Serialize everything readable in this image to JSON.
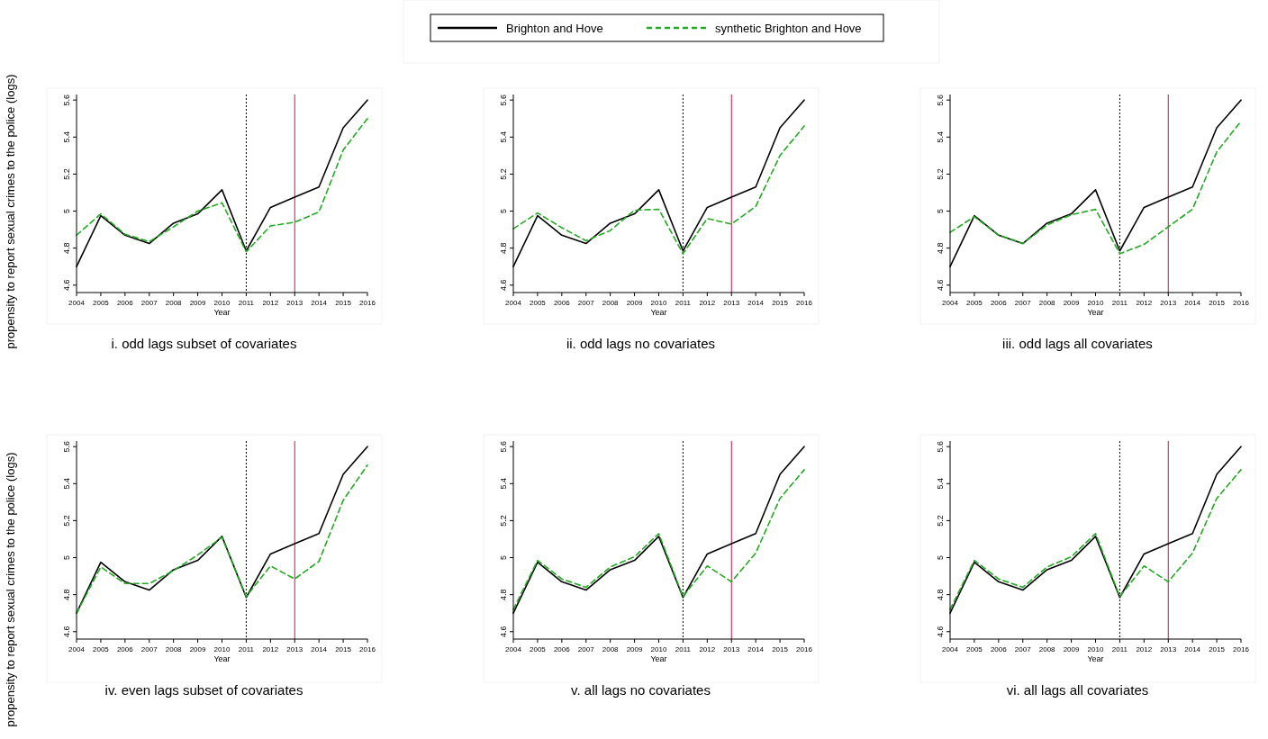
{
  "chart_data": [
    {
      "type": "line",
      "title": "i. odd lags subset of covariates",
      "xlabel": "Year",
      "ylabel": "propensity to report sexual crimes to the police (logs)",
      "legend": "top",
      "x": [
        2004,
        2005,
        2006,
        2007,
        2008,
        2009,
        2010,
        2011,
        2012,
        2013,
        2014,
        2015,
        2016
      ],
      "xlim": [
        2004,
        2016
      ],
      "xticks": [
        2004,
        2005,
        2006,
        2007,
        2008,
        2009,
        2010,
        2011,
        2012,
        2013,
        2014,
        2015,
        2016
      ],
      "ylim": [
        4.56,
        5.63
      ],
      "yticks": [
        4.6,
        4.8,
        5,
        5.2,
        5.4,
        5.6
      ],
      "ref_lines": [
        {
          "axis": "x",
          "value": 2011,
          "color": "#000000",
          "line_style": "dotted"
        },
        {
          "axis": "x",
          "value": 2013,
          "color": "#cc1144",
          "line_style": "solid"
        }
      ],
      "series": [
        {
          "name": "Brighton and Hove",
          "color": "#000000",
          "line_style": "solid",
          "values": [
            4.7,
            4.975,
            4.87,
            4.825,
            4.935,
            4.985,
            5.115,
            4.785,
            5.02,
            5.075,
            5.13,
            5.45,
            5.6
          ]
        },
        {
          "name": "synthetic Brighton and Hove",
          "color": "#22aa22",
          "line_style": "dashed",
          "values": [
            4.87,
            4.985,
            4.875,
            4.835,
            4.915,
            5.0,
            5.045,
            4.78,
            4.92,
            4.94,
            4.995,
            5.33,
            5.5
          ]
        }
      ]
    },
    {
      "type": "line",
      "title": "ii. odd lags no covariates",
      "xlabel": "Year",
      "x": [
        2004,
        2005,
        2006,
        2007,
        2008,
        2009,
        2010,
        2011,
        2012,
        2013,
        2014,
        2015,
        2016
      ],
      "xlim": [
        2004,
        2016
      ],
      "xticks": [
        2004,
        2005,
        2006,
        2007,
        2008,
        2009,
        2010,
        2011,
        2012,
        2013,
        2014,
        2015,
        2016
      ],
      "ylim": [
        4.56,
        5.63
      ],
      "yticks": [
        4.6,
        4.8,
        5,
        5.2,
        5.4,
        5.6
      ],
      "ref_lines": [
        {
          "axis": "x",
          "value": 2011,
          "color": "#000000",
          "line_style": "dotted"
        },
        {
          "axis": "x",
          "value": 2013,
          "color": "#cc1144",
          "line_style": "solid"
        }
      ],
      "series": [
        {
          "color": "#000000",
          "line_style": "solid",
          "values": [
            4.7,
            4.975,
            4.87,
            4.825,
            4.935,
            4.985,
            5.115,
            4.785,
            5.02,
            5.075,
            5.13,
            5.45,
            5.6
          ]
        },
        {
          "color": "#22aa22",
          "line_style": "dashed",
          "values": [
            4.905,
            4.99,
            4.91,
            4.84,
            4.895,
            5.005,
            5.01,
            4.77,
            4.96,
            4.93,
            5.025,
            5.3,
            5.46
          ]
        }
      ]
    },
    {
      "type": "line",
      "title": "iii. odd lags all covariates",
      "xlabel": "Year",
      "x": [
        2004,
        2005,
        2006,
        2007,
        2008,
        2009,
        2010,
        2011,
        2012,
        2013,
        2014,
        2015,
        2016
      ],
      "xlim": [
        2004,
        2016
      ],
      "xticks": [
        2004,
        2005,
        2006,
        2007,
        2008,
        2009,
        2010,
        2011,
        2012,
        2013,
        2014,
        2015,
        2016
      ],
      "ylim": [
        4.56,
        5.63
      ],
      "yticks": [
        4.6,
        4.8,
        5,
        5.2,
        5.4,
        5.6
      ],
      "ref_lines": [
        {
          "axis": "x",
          "value": 2011,
          "color": "#000000",
          "line_style": "dotted"
        },
        {
          "axis": "x",
          "value": 2013,
          "color": "#cc1144",
          "line_style": "solid"
        }
      ],
      "series": [
        {
          "color": "#000000",
          "line_style": "solid",
          "values": [
            4.7,
            4.975,
            4.87,
            4.825,
            4.935,
            4.985,
            5.115,
            4.785,
            5.02,
            5.075,
            5.13,
            5.45,
            5.6
          ]
        },
        {
          "color": "#22aa22",
          "line_style": "dashed",
          "values": [
            4.885,
            4.97,
            4.87,
            4.825,
            4.925,
            4.98,
            5.01,
            4.77,
            4.82,
            4.915,
            5.01,
            5.32,
            5.485
          ]
        }
      ]
    },
    {
      "type": "line",
      "title": "iv. even lags subset of covariates",
      "xlabel": "Year",
      "ylabel": "propensity to report sexual crimes to the police (logs)",
      "x": [
        2004,
        2005,
        2006,
        2007,
        2008,
        2009,
        2010,
        2011,
        2012,
        2013,
        2014,
        2015,
        2016
      ],
      "xlim": [
        2004,
        2016
      ],
      "xticks": [
        2004,
        2005,
        2006,
        2007,
        2008,
        2009,
        2010,
        2011,
        2012,
        2013,
        2014,
        2015,
        2016
      ],
      "ylim": [
        4.56,
        5.63
      ],
      "yticks": [
        4.6,
        4.8,
        5,
        5.2,
        5.4,
        5.6
      ],
      "ref_lines": [
        {
          "axis": "x",
          "value": 2011,
          "color": "#000000",
          "line_style": "dotted"
        },
        {
          "axis": "x",
          "value": 2013,
          "color": "#cc1144",
          "line_style": "solid"
        }
      ],
      "series": [
        {
          "color": "#000000",
          "line_style": "solid",
          "values": [
            4.7,
            4.975,
            4.87,
            4.825,
            4.935,
            4.985,
            5.115,
            4.785,
            5.02,
            5.075,
            5.13,
            5.45,
            5.6
          ]
        },
        {
          "color": "#22aa22",
          "line_style": "dashed",
          "values": [
            4.7,
            4.95,
            4.86,
            4.86,
            4.93,
            5.015,
            5.11,
            4.79,
            4.955,
            4.885,
            4.98,
            5.31,
            5.5
          ]
        }
      ]
    },
    {
      "type": "line",
      "title": "v. all lags no covariates",
      "xlabel": "Year",
      "x": [
        2004,
        2005,
        2006,
        2007,
        2008,
        2009,
        2010,
        2011,
        2012,
        2013,
        2014,
        2015,
        2016
      ],
      "xlim": [
        2004,
        2016
      ],
      "xticks": [
        2004,
        2005,
        2006,
        2007,
        2008,
        2009,
        2010,
        2011,
        2012,
        2013,
        2014,
        2015,
        2016
      ],
      "ylim": [
        4.56,
        5.63
      ],
      "yticks": [
        4.6,
        4.8,
        5,
        5.2,
        5.4,
        5.6
      ],
      "ref_lines": [
        {
          "axis": "x",
          "value": 2011,
          "color": "#000000",
          "line_style": "dotted"
        },
        {
          "axis": "x",
          "value": 2013,
          "color": "#cc1144",
          "line_style": "solid"
        }
      ],
      "series": [
        {
          "color": "#000000",
          "line_style": "solid",
          "values": [
            4.7,
            4.975,
            4.87,
            4.825,
            4.935,
            4.985,
            5.115,
            4.785,
            5.02,
            5.075,
            5.13,
            5.45,
            5.6
          ]
        },
        {
          "color": "#22aa22",
          "line_style": "dashed",
          "values": [
            4.72,
            4.985,
            4.885,
            4.84,
            4.95,
            5.005,
            5.13,
            4.79,
            4.955,
            4.87,
            5.025,
            5.32,
            5.475
          ]
        }
      ]
    },
    {
      "type": "line",
      "title": "vi. all lags all covariates",
      "xlabel": "Year",
      "x": [
        2004,
        2005,
        2006,
        2007,
        2008,
        2009,
        2010,
        2011,
        2012,
        2013,
        2014,
        2015,
        2016
      ],
      "xlim": [
        2004,
        2016
      ],
      "xticks": [
        2004,
        2005,
        2006,
        2007,
        2008,
        2009,
        2010,
        2011,
        2012,
        2013,
        2014,
        2015,
        2016
      ],
      "ylim": [
        4.56,
        5.63
      ],
      "yticks": [
        4.6,
        4.8,
        5,
        5.2,
        5.4,
        5.6
      ],
      "ref_lines": [
        {
          "axis": "x",
          "value": 2011,
          "color": "#000000",
          "line_style": "dotted"
        },
        {
          "axis": "x",
          "value": 2013,
          "color": "#cc1144",
          "line_style": "solid"
        }
      ],
      "series": [
        {
          "color": "#000000",
          "line_style": "solid",
          "values": [
            4.7,
            4.975,
            4.87,
            4.825,
            4.935,
            4.985,
            5.115,
            4.785,
            5.02,
            5.075,
            5.13,
            5.45,
            5.6
          ]
        },
        {
          "color": "#22aa22",
          "line_style": "dashed",
          "values": [
            4.72,
            4.985,
            4.885,
            4.84,
            4.95,
            5.005,
            5.13,
            4.79,
            4.955,
            4.87,
            5.025,
            5.32,
            5.475
          ]
        }
      ]
    }
  ]
}
